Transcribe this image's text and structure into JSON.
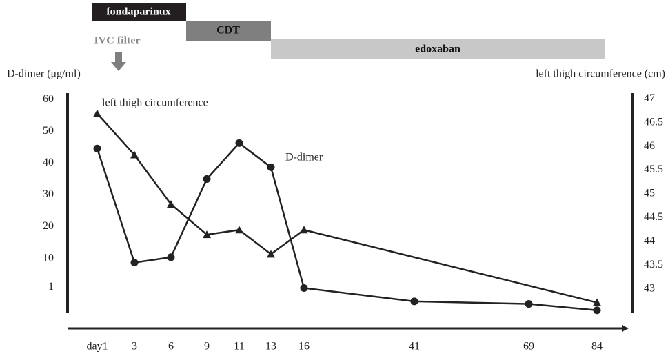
{
  "chart_data": {
    "type": "line",
    "treatments": [
      "fondaparinux",
      "CDT",
      "edoxaban"
    ],
    "procedure": "IVC filter",
    "ylabel": "D-dimer (μg/ml)",
    "y2label": "left thigh circumference (cm)",
    "categories": [
      "day1",
      "3",
      "6",
      "9",
      "11",
      "13",
      "16",
      "41",
      "69",
      "84"
    ],
    "ylim": [
      -7,
      62
    ],
    "yticks": [
      1,
      10,
      20,
      30,
      40,
      50,
      60
    ],
    "y2lim": [
      42.5,
      47.12
    ],
    "y2ticks": [
      43,
      43.5,
      44,
      44.5,
      45,
      45.5,
      46,
      46.5,
      47
    ],
    "series": [
      {
        "name": "D-dimer",
        "color": "#222222",
        "marker": "circle",
        "values": [
          44.6,
          8.7,
          10.4,
          35,
          46.3,
          38.7,
          0.7,
          -3.5,
          -4.3,
          -6.3
        ]
      },
      {
        "name": "left thigh circumference",
        "color": "#222222",
        "marker": "triangle",
        "axis": "y2",
        "values": [
          46.69,
          45.82,
          44.78,
          44.14,
          44.24,
          43.73,
          44.24,
          null,
          null,
          42.71
        ]
      }
    ]
  }
}
